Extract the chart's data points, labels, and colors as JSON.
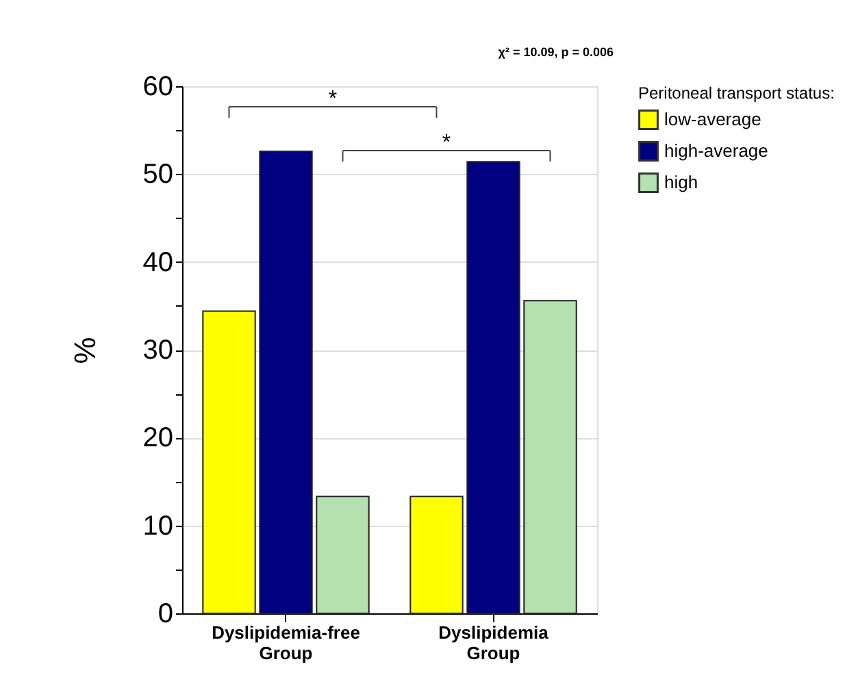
{
  "chart_data": {
    "type": "bar",
    "ylabel": "%",
    "legend_title": "Peritoneal transport status:",
    "categories": [
      "Dyslipidemia-free Group",
      "Dyslipidemia Group"
    ],
    "series": [
      {
        "name": "low-average",
        "color": "#ffff00",
        "values": [
          34.4,
          13.3
        ]
      },
      {
        "name": "high-average",
        "color": "#000080",
        "values": [
          52.6,
          51.4
        ]
      },
      {
        "name": "high",
        "color": "#b5e0b0",
        "values": [
          13.3,
          35.6
        ]
      }
    ],
    "ylim": [
      0,
      60
    ],
    "yticks": [
      0,
      {
        "value": 5,
        "label": null
      },
      10,
      {
        "value": 15,
        "label": null
      },
      20,
      {
        "value": 25,
        "label": null
      },
      30,
      {
        "value": 35,
        "label": null
      },
      40,
      {
        "value": 45,
        "label": null
      },
      50,
      {
        "value": 55,
        "label": null
      },
      60
    ],
    "grid": "y",
    "legend": "right",
    "annotations": [
      "χ² = 10.09, p = 0.006",
      "*",
      "*"
    ]
  }
}
